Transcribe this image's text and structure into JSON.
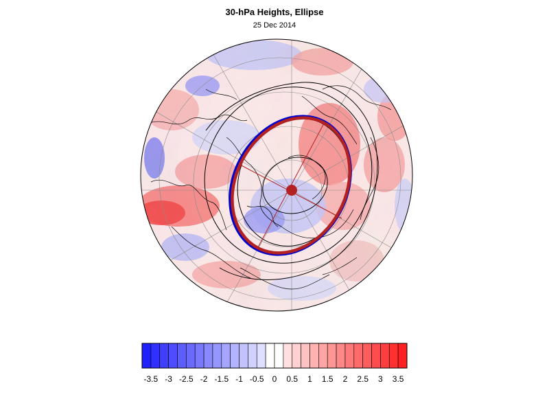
{
  "header": {
    "title": "30-hPa Heights, Ellipse",
    "date": "25 Dec 2014"
  },
  "legend": {
    "labels": [
      "-3.5",
      "-3",
      "-2.5",
      "-2",
      "-1.5",
      "-1",
      "-0.5",
      "0",
      "0.5",
      "1",
      "1.5",
      "2",
      "2.5",
      "3",
      "3.5"
    ],
    "min": -3.75,
    "max": 3.75,
    "step": 0.25
  },
  "colors": {
    "negative_max": "#1a1aff",
    "positive_max": "#ff1a1a",
    "fit_ellipse": "#b22222",
    "contour_ellipse": "#0000cc",
    "contours": "#000000",
    "graticule": "#808080",
    "coastline": "#000000"
  }
}
